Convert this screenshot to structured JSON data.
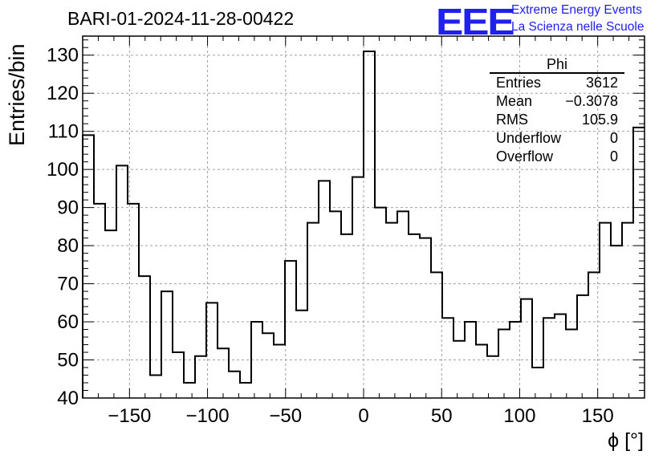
{
  "header": {
    "title": "BARI-01-2024-11-28-00422",
    "logo_mark": "EEE",
    "logo_line1": "Extreme Energy Events",
    "logo_line2": "La Scienza nelle Scuole"
  },
  "stats_box": {
    "name": "Phi",
    "rows": [
      {
        "label": "Entries",
        "value": "3612"
      },
      {
        "label": "Mean",
        "value": "−0.3078"
      },
      {
        "label": "RMS",
        "value": "105.9"
      },
      {
        "label": "Underflow",
        "value": "0"
      },
      {
        "label": "Overflow",
        "value": "0"
      }
    ]
  },
  "colors": {
    "line": "#000000",
    "grid": "#a0a0a0",
    "logo": "#1f1ff0"
  },
  "chart_data": {
    "type": "histogram",
    "title": "BARI-01-2024-11-28-00422",
    "xlabel": "ϕ [°]",
    "ylabel": "Entries/bin",
    "xlim": [
      -180,
      180
    ],
    "ylim": [
      40,
      135
    ],
    "bin_width": 7.2,
    "xticks": [
      -150,
      -100,
      -50,
      0,
      50,
      100,
      150
    ],
    "xtick_labels": [
      "−150",
      "−100",
      "−50",
      "0",
      "50",
      "100",
      "150"
    ],
    "yticks": [
      40,
      50,
      60,
      70,
      80,
      90,
      100,
      110,
      120,
      130
    ],
    "ytick_labels": [
      "40",
      "50",
      "60",
      "70",
      "80",
      "90",
      "100",
      "110",
      "120",
      "130"
    ],
    "grid": true,
    "values": [
      109,
      91,
      84,
      101,
      91,
      72,
      46,
      68,
      52,
      44,
      51,
      65,
      53,
      47,
      44,
      60,
      57,
      54,
      76,
      63,
      86,
      97,
      89,
      83,
      98,
      131,
      90,
      86,
      89,
      83,
      82,
      73,
      61,
      55,
      60,
      54,
      51,
      58,
      60,
      66,
      48,
      61,
      62,
      58,
      67,
      73,
      86,
      80,
      86,
      111
    ]
  }
}
